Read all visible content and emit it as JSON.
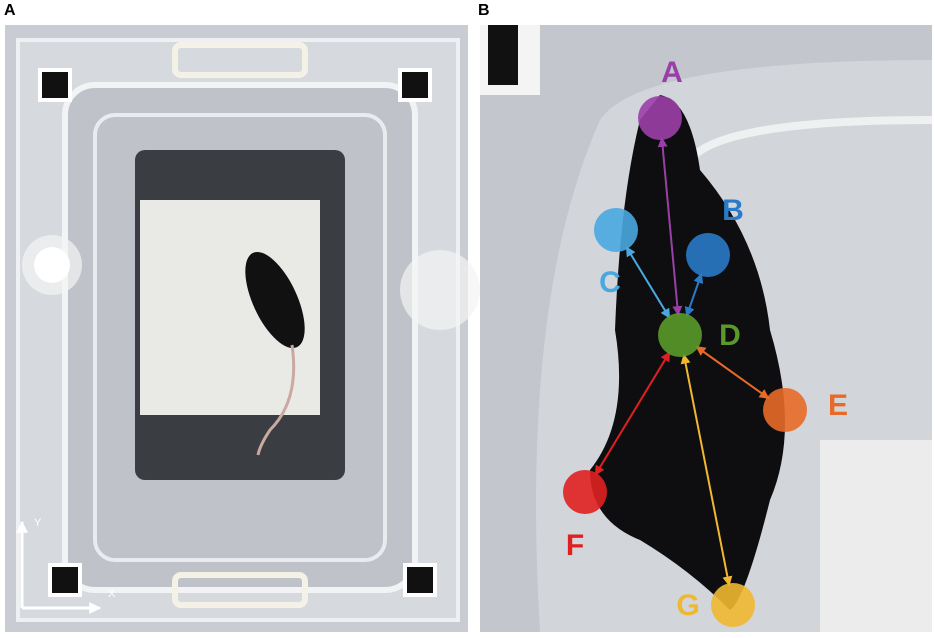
{
  "panels": {
    "a": {
      "label": "A",
      "axis_y": "Y",
      "axis_x": "X"
    },
    "b": {
      "label": "B"
    }
  },
  "keypoints": [
    {
      "label": "A",
      "color": "#9b3fa8"
    },
    {
      "label": "B",
      "color": "#2a7ac8"
    },
    {
      "label": "C",
      "color": "#4aa8e0"
    },
    {
      "label": "D",
      "color": "#5a9a2a"
    },
    {
      "label": "E",
      "color": "#e86a28"
    },
    {
      "label": "F",
      "color": "#e02020"
    },
    {
      "label": "G",
      "color": "#f0b830"
    }
  ],
  "connections": [
    [
      "A",
      "D"
    ],
    [
      "B",
      "D"
    ],
    [
      "C",
      "D"
    ],
    [
      "E",
      "D"
    ],
    [
      "F",
      "D"
    ],
    [
      "G",
      "D"
    ]
  ]
}
